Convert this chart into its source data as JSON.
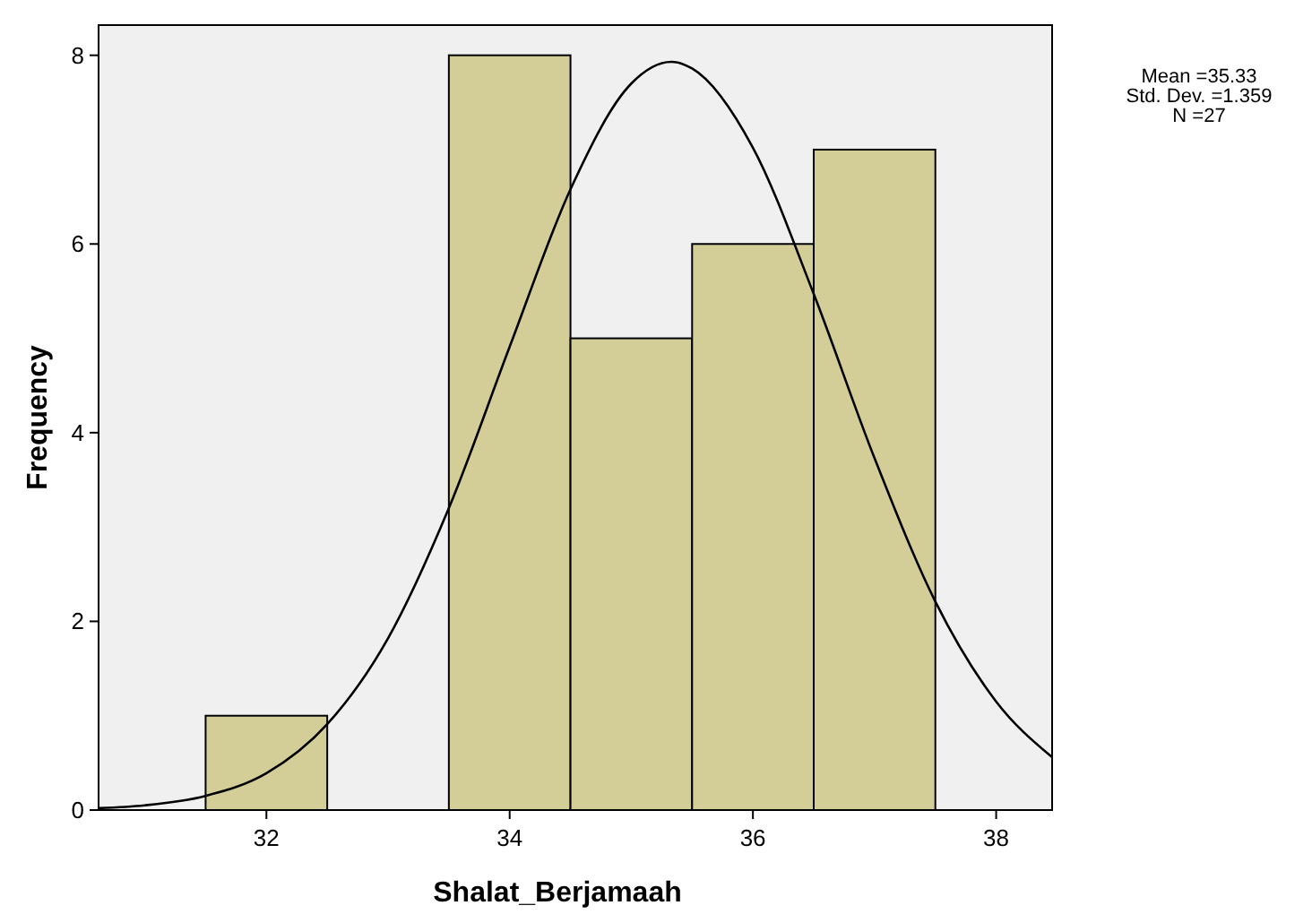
{
  "chart_data": {
    "type": "histogram",
    "xlabel": "Shalat_Berjamaah",
    "ylabel": "Frequency",
    "bins": [
      31.5,
      32.5,
      33.5,
      34.5,
      35.5,
      36.5,
      37.5
    ],
    "values": [
      1,
      0,
      8,
      5,
      6,
      7
    ],
    "color": "#d3ce97",
    "series": [
      {
        "type": "line",
        "color": "#000000",
        "x": [
          30.62,
          31,
          31.5,
          32,
          32.5,
          33,
          33.5,
          34,
          34.5,
          35,
          35.33,
          35.5,
          36,
          36.5,
          37,
          37.5,
          38,
          38.46
        ],
        "values": [
          0.02,
          0.05,
          0.15,
          0.39,
          0.91,
          1.82,
          3.2,
          4.91,
          6.58,
          7.7,
          7.93,
          7.86,
          7.02,
          5.47,
          3.73,
          2.21,
          1.15,
          0.56
        ]
      }
    ],
    "xlim": [
      30.62,
      38.46
    ],
    "ylim": [
      0,
      8.32
    ],
    "xticks": [
      32,
      34,
      36,
      38
    ],
    "yticks": [
      0,
      2,
      4,
      6,
      8
    ],
    "annotations": [
      "Mean =35.33",
      "Std. Dev. =1.359",
      "N =27"
    ]
  }
}
